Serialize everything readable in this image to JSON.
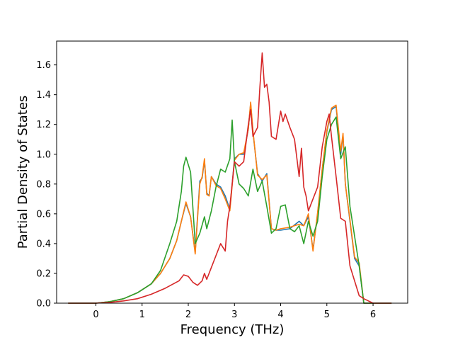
{
  "chart_data": {
    "type": "line",
    "title": "",
    "xlabel": "Frequency (THz)",
    "ylabel": "Partial Density of States",
    "xlim": [
      -0.85,
      6.75
    ],
    "ylim": [
      0.0,
      1.76
    ],
    "xticks": [
      "0",
      "1",
      "2",
      "3",
      "4",
      "5",
      "6"
    ],
    "yticks": [
      "0.0",
      "0.2",
      "0.4",
      "0.6",
      "0.8",
      "1.0",
      "1.2",
      "1.4",
      "1.6"
    ],
    "grid": false,
    "legend": "none",
    "series": [
      {
        "color": "#1f77b4",
        "x": [
          -0.6,
          0.0,
          0.3,
          0.6,
          0.9,
          1.2,
          1.4,
          1.6,
          1.75,
          1.85,
          1.95,
          2.05,
          2.15,
          2.25,
          2.3,
          2.35,
          2.4,
          2.45,
          2.5,
          2.6,
          2.7,
          2.8,
          2.9,
          3.0,
          3.1,
          3.2,
          3.3,
          3.35,
          3.4,
          3.5,
          3.6,
          3.7,
          3.8,
          3.9,
          4.0,
          4.2,
          4.4,
          4.5,
          4.6,
          4.7,
          4.8,
          4.9,
          5.0,
          5.1,
          5.2,
          5.3,
          5.35,
          5.4,
          5.5,
          5.6,
          5.7,
          5.8,
          6.0,
          6.4
        ],
        "y": [
          0.0,
          0.0,
          0.01,
          0.03,
          0.07,
          0.13,
          0.2,
          0.3,
          0.42,
          0.55,
          0.67,
          0.58,
          0.34,
          0.82,
          0.84,
          0.96,
          0.74,
          0.72,
          0.85,
          0.8,
          0.78,
          0.72,
          0.63,
          0.97,
          1.0,
          1.0,
          1.17,
          1.34,
          1.15,
          0.87,
          0.82,
          0.87,
          0.5,
          0.49,
          0.49,
          0.5,
          0.55,
          0.52,
          0.58,
          0.36,
          0.6,
          0.9,
          1.15,
          1.3,
          1.32,
          1.0,
          1.13,
          0.8,
          0.55,
          0.3,
          0.25,
          0.0,
          0.0,
          0.0
        ]
      },
      {
        "color": "#ff7f0e",
        "x": [
          -0.6,
          0.0,
          0.3,
          0.6,
          0.9,
          1.2,
          1.4,
          1.6,
          1.75,
          1.85,
          1.95,
          2.05,
          2.15,
          2.25,
          2.3,
          2.35,
          2.4,
          2.45,
          2.5,
          2.6,
          2.7,
          2.8,
          2.9,
          3.0,
          3.1,
          3.2,
          3.3,
          3.35,
          3.4,
          3.5,
          3.6,
          3.7,
          3.8,
          3.9,
          4.0,
          4.2,
          4.4,
          4.5,
          4.6,
          4.7,
          4.8,
          4.9,
          5.0,
          5.1,
          5.2,
          5.3,
          5.35,
          5.4,
          5.5,
          5.6,
          5.7,
          5.8,
          6.0,
          6.4
        ],
        "y": [
          0.0,
          0.0,
          0.01,
          0.03,
          0.07,
          0.13,
          0.2,
          0.3,
          0.42,
          0.55,
          0.68,
          0.58,
          0.33,
          0.8,
          0.85,
          0.97,
          0.73,
          0.72,
          0.85,
          0.79,
          0.77,
          0.7,
          0.62,
          0.96,
          1.0,
          1.01,
          1.17,
          1.35,
          1.16,
          0.86,
          0.83,
          0.86,
          0.5,
          0.49,
          0.5,
          0.51,
          0.53,
          0.52,
          0.6,
          0.35,
          0.61,
          0.9,
          1.16,
          1.31,
          1.33,
          1.02,
          1.14,
          0.8,
          0.56,
          0.31,
          0.27,
          0.0,
          0.0,
          0.0
        ]
      },
      {
        "color": "#2ca02c",
        "x": [
          -0.6,
          0.0,
          0.3,
          0.6,
          0.9,
          1.2,
          1.4,
          1.6,
          1.75,
          1.85,
          1.9,
          1.95,
          2.05,
          2.15,
          2.25,
          2.35,
          2.4,
          2.5,
          2.6,
          2.7,
          2.8,
          2.9,
          2.95,
          3.0,
          3.1,
          3.2,
          3.3,
          3.4,
          3.5,
          3.6,
          3.7,
          3.8,
          3.9,
          4.0,
          4.1,
          4.2,
          4.3,
          4.4,
          4.5,
          4.6,
          4.7,
          4.8,
          4.9,
          5.0,
          5.1,
          5.2,
          5.3,
          5.4,
          5.5,
          5.6,
          5.7,
          5.8,
          6.0,
          6.4
        ],
        "y": [
          0.0,
          0.0,
          0.01,
          0.03,
          0.07,
          0.13,
          0.22,
          0.4,
          0.55,
          0.75,
          0.92,
          0.98,
          0.88,
          0.4,
          0.47,
          0.58,
          0.5,
          0.62,
          0.78,
          0.9,
          0.88,
          0.97,
          1.23,
          0.95,
          0.8,
          0.77,
          0.72,
          0.9,
          0.75,
          0.82,
          0.65,
          0.47,
          0.5,
          0.65,
          0.66,
          0.5,
          0.48,
          0.52,
          0.4,
          0.55,
          0.45,
          0.55,
          0.85,
          1.1,
          1.2,
          1.25,
          0.97,
          1.05,
          0.65,
          0.45,
          0.25,
          0.0,
          0.0,
          0.0
        ]
      },
      {
        "color": "#d62728",
        "x": [
          -0.6,
          0.0,
          0.3,
          0.6,
          0.9,
          1.2,
          1.5,
          1.8,
          1.9,
          2.0,
          2.1,
          2.2,
          2.3,
          2.35,
          2.4,
          2.5,
          2.6,
          2.7,
          2.8,
          2.85,
          2.9,
          3.0,
          3.1,
          3.2,
          3.3,
          3.35,
          3.4,
          3.5,
          3.55,
          3.6,
          3.65,
          3.7,
          3.75,
          3.8,
          3.9,
          4.0,
          4.05,
          4.1,
          4.2,
          4.3,
          4.4,
          4.45,
          4.5,
          4.55,
          4.6,
          4.7,
          4.8,
          4.9,
          5.0,
          5.05,
          5.1,
          5.2,
          5.3,
          5.4,
          5.5,
          5.6,
          5.7,
          5.8,
          6.0,
          6.4
        ],
        "y": [
          0.0,
          0.0,
          0.005,
          0.015,
          0.03,
          0.06,
          0.1,
          0.15,
          0.19,
          0.18,
          0.14,
          0.12,
          0.15,
          0.2,
          0.16,
          0.24,
          0.32,
          0.4,
          0.35,
          0.55,
          0.65,
          0.95,
          0.92,
          0.95,
          1.2,
          1.3,
          1.12,
          1.18,
          1.45,
          1.68,
          1.45,
          1.47,
          1.35,
          1.12,
          1.1,
          1.29,
          1.22,
          1.27,
          1.18,
          1.1,
          0.85,
          1.04,
          0.78,
          0.72,
          0.62,
          0.7,
          0.78,
          1.05,
          1.22,
          1.27,
          1.12,
          0.85,
          0.57,
          0.55,
          0.25,
          0.15,
          0.05,
          0.03,
          0.0,
          0.0
        ]
      }
    ]
  }
}
